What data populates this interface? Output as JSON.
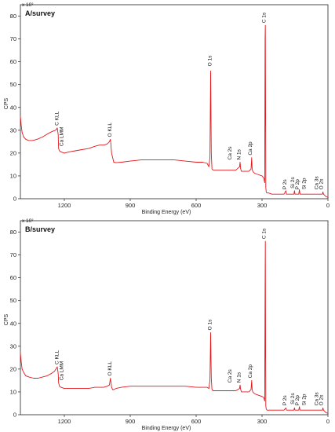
{
  "chart_data": [
    {
      "type": "line",
      "title": "A/survey",
      "xlabel": "Binding Energy (eV)",
      "ylabel": "CPS",
      "y_multiplier": "x 10²",
      "xlim": [
        1400,
        0
      ],
      "xreversed": true,
      "x_ticks": [
        "1200",
        "900",
        "600",
        "300",
        "0"
      ],
      "ylim": [
        0,
        85
      ],
      "y_ticks": [
        "0",
        "10",
        "20",
        "30",
        "40",
        "50",
        "60",
        "70",
        "80"
      ],
      "series": [
        {
          "x": [
            1400,
            1396,
            1392,
            1385,
            1375,
            1362,
            1345,
            1325,
            1300,
            1275,
            1255,
            1240,
            1232,
            1228,
            1226,
            1222,
            1215,
            1200,
            1180,
            1150,
            1120,
            1090,
            1060,
            1040,
            1020,
            1005,
            995,
            990,
            985,
            980,
            975,
            965,
            940,
            900,
            850,
            800,
            750,
            700,
            650,
            600,
            570,
            550,
            542,
            537,
            534,
            531,
            528,
            522,
            515,
            505,
            490,
            470,
            450,
            420,
            402,
            400,
            397,
            394,
            390,
            380,
            360,
            350,
            347,
            345,
            342,
            338,
            330,
            315,
            300,
            292,
            288,
            286,
            285,
            284,
            283,
            281,
            278,
            270,
            255,
            240,
            230,
            200,
            191,
            189,
            187,
            170,
            160,
            155,
            152,
            150,
            140,
            133,
            130,
            127,
            115,
            100,
            80,
            70,
            60,
            45,
            40,
            35,
            30,
            25,
            23,
            20,
            10,
            0
          ],
          "y": [
            36,
            32,
            29,
            27,
            26,
            25.5,
            25.5,
            26,
            27,
            28.5,
            29.5,
            30,
            31,
            28,
            22,
            21,
            20.5,
            20,
            20.5,
            21,
            21.5,
            22,
            23,
            23.5,
            23.5,
            24,
            25,
            26,
            20,
            18,
            16,
            15.8,
            16,
            16.5,
            17,
            17,
            17,
            17,
            16.5,
            16,
            16,
            15.5,
            14,
            18,
            56,
            20,
            13,
            12.5,
            12.5,
            12.5,
            12.5,
            12.5,
            12.5,
            12.5,
            14,
            16,
            13,
            12,
            12,
            12,
            12,
            13,
            18,
            13,
            12,
            11.5,
            11,
            10.5,
            10,
            9,
            7,
            70,
            76,
            40,
            5,
            3,
            2.5,
            2.5,
            2,
            2,
            2,
            2,
            3.5,
            2,
            2,
            2,
            2,
            2,
            3.5,
            2,
            2,
            2,
            4,
            2,
            2,
            2,
            2,
            2,
            2,
            2,
            2,
            2,
            2,
            2,
            3,
            2,
            1,
            0.5
          ]
        }
      ],
      "annotations": [
        {
          "label": "C KLL",
          "x": 1226,
          "y": 31
        },
        {
          "label": "Ca LMM",
          "x": 1205,
          "y": 22
        },
        {
          "label": "O KLL",
          "x": 986,
          "y": 26
        },
        {
          "label": "O 1s",
          "x": 531,
          "y": 57
        },
        {
          "label": "Ca 2s",
          "x": 440,
          "y": 16
        },
        {
          "label": "N 1s",
          "x": 399,
          "y": 16
        },
        {
          "label": "Ca 2p",
          "x": 347,
          "y": 18
        },
        {
          "label": "C 1s",
          "x": 284,
          "y": 76
        },
        {
          "label": "P 2s",
          "x": 190,
          "y": 3
        },
        {
          "label": "Si 2s",
          "x": 153,
          "y": 3.5
        },
        {
          "label": "P 2p",
          "x": 133,
          "y": 3
        },
        {
          "label": "Si 2p",
          "x": 101,
          "y": 3
        },
        {
          "label": "Ca 3s",
          "x": 44,
          "y": 3
        },
        {
          "label": "O 2s",
          "x": 24,
          "y": 3
        }
      ]
    },
    {
      "type": "line",
      "title": "B/survey",
      "xlabel": "Binding Energy (eV)",
      "ylabel": "CPS",
      "y_multiplier": "x 10²",
      "xlim": [
        1400,
        0
      ],
      "xreversed": true,
      "x_ticks": [
        "1200",
        "900",
        "600",
        "300",
        "0"
      ],
      "ylim": [
        0,
        85
      ],
      "y_ticks": [
        "0",
        "10",
        "20",
        "30",
        "40",
        "50",
        "60",
        "70",
        "80"
      ],
      "series": [
        {
          "x": [
            1400,
            1396,
            1392,
            1385,
            1375,
            1360,
            1340,
            1320,
            1300,
            1280,
            1260,
            1245,
            1232,
            1228,
            1226,
            1222,
            1215,
            1200,
            1180,
            1150,
            1120,
            1090,
            1060,
            1040,
            1020,
            1005,
            995,
            990,
            985,
            980,
            975,
            965,
            940,
            900,
            850,
            800,
            750,
            700,
            650,
            600,
            570,
            550,
            542,
            537,
            534,
            531,
            528,
            522,
            515,
            505,
            490,
            470,
            450,
            420,
            402,
            400,
            397,
            394,
            390,
            380,
            360,
            350,
            347,
            345,
            342,
            338,
            330,
            315,
            300,
            292,
            288,
            286,
            285,
            284,
            283,
            281,
            278,
            270,
            255,
            240,
            230,
            200,
            191,
            189,
            187,
            170,
            160,
            155,
            152,
            150,
            140,
            133,
            130,
            127,
            115,
            100,
            80,
            70,
            60,
            45,
            40,
            35,
            30,
            25,
            23,
            20,
            10,
            0
          ],
          "y": [
            27,
            23,
            20,
            18.5,
            17,
            16.5,
            16,
            16,
            16.5,
            17,
            18,
            19,
            21,
            18,
            14,
            12.5,
            12,
            11.5,
            11.5,
            11.5,
            11.5,
            11.5,
            12,
            12,
            12,
            12.5,
            13,
            16,
            12,
            11,
            11,
            11.5,
            12,
            12.5,
            12.5,
            12.5,
            12.5,
            12.5,
            12.5,
            12,
            12,
            12,
            11.5,
            15,
            36,
            16,
            11,
            10.5,
            10.5,
            10.5,
            10.5,
            10.5,
            10.5,
            10.5,
            11.5,
            13,
            11,
            10,
            10,
            10,
            10,
            11,
            15,
            11,
            10,
            9.5,
            9,
            8.5,
            8,
            7.5,
            6,
            55,
            76,
            30,
            4,
            2.5,
            2,
            2,
            2,
            2,
            2,
            2,
            3,
            2,
            2,
            2,
            2,
            2,
            3,
            2,
            2,
            2,
            3.5,
            2,
            2,
            2,
            2,
            2,
            2,
            2,
            2,
            2,
            2,
            2,
            3,
            2,
            1,
            0.5
          ]
        }
      ],
      "annotations": [
        {
          "label": "C KLL",
          "x": 1226,
          "y": 21
        },
        {
          "label": "Ca LMM",
          "x": 1205,
          "y": 14
        },
        {
          "label": "O KLL",
          "x": 986,
          "y": 16
        },
        {
          "label": "O 1s",
          "x": 531,
          "y": 36
        },
        {
          "label": "Ca 2s",
          "x": 440,
          "y": 13
        },
        {
          "label": "N 1s",
          "x": 399,
          "y": 13
        },
        {
          "label": "Ca 2p",
          "x": 347,
          "y": 15
        },
        {
          "label": "C 1s",
          "x": 284,
          "y": 76
        },
        {
          "label": "P 2s",
          "x": 190,
          "y": 3
        },
        {
          "label": "Si 2s",
          "x": 153,
          "y": 3.5
        },
        {
          "label": "P 2p",
          "x": 133,
          "y": 3
        },
        {
          "label": "Si 2p",
          "x": 101,
          "y": 3
        },
        {
          "label": "Ca 3s",
          "x": 44,
          "y": 3
        },
        {
          "label": "O 2s",
          "x": 24,
          "y": 3
        }
      ]
    }
  ]
}
